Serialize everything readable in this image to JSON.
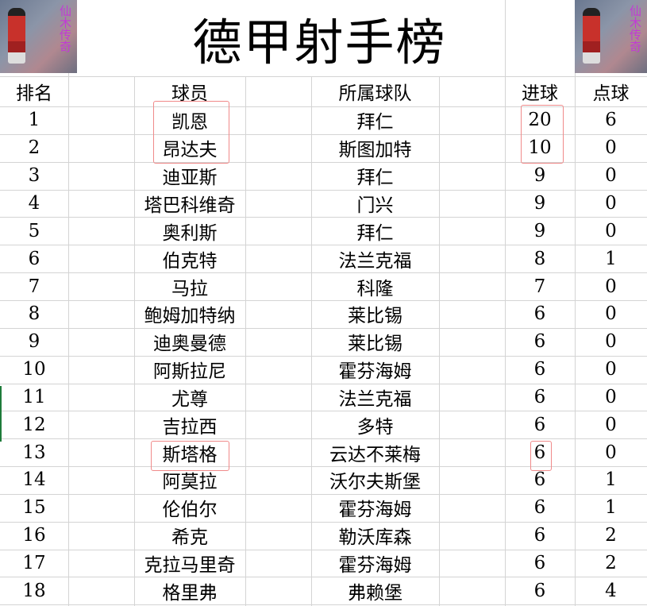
{
  "title": "德甲射手榜",
  "image_caption": "仙木传奇",
  "headers": {
    "rank": "排名",
    "player": "球员",
    "team": "所属球队",
    "goals": "进球",
    "penalties": "点球"
  },
  "rows": [
    {
      "rank": "1",
      "player": "凯恩",
      "team": "拜仁",
      "goals": "20",
      "penalties": "6"
    },
    {
      "rank": "2",
      "player": "昂达夫",
      "team": "斯图加特",
      "goals": "10",
      "penalties": "0"
    },
    {
      "rank": "3",
      "player": "迪亚斯",
      "team": "拜仁",
      "goals": "9",
      "penalties": "0"
    },
    {
      "rank": "4",
      "player": "塔巴科维奇",
      "team": "门兴",
      "goals": "9",
      "penalties": "0"
    },
    {
      "rank": "5",
      "player": "奥利斯",
      "team": "拜仁",
      "goals": "9",
      "penalties": "0"
    },
    {
      "rank": "6",
      "player": "伯克特",
      "team": "法兰克福",
      "goals": "8",
      "penalties": "1"
    },
    {
      "rank": "7",
      "player": "马拉",
      "team": "科隆",
      "goals": "7",
      "penalties": "0"
    },
    {
      "rank": "8",
      "player": "鲍姆加特纳",
      "team": "莱比锡",
      "goals": "6",
      "penalties": "0"
    },
    {
      "rank": "9",
      "player": "迪奥曼德",
      "team": "莱比锡",
      "goals": "6",
      "penalties": "0"
    },
    {
      "rank": "10",
      "player": "阿斯拉尼",
      "team": "霍芬海姆",
      "goals": "6",
      "penalties": "0"
    },
    {
      "rank": "11",
      "player": "尤尊",
      "team": "法兰克福",
      "goals": "6",
      "penalties": "0"
    },
    {
      "rank": "12",
      "player": "吉拉西",
      "team": "多特",
      "goals": "6",
      "penalties": "0"
    },
    {
      "rank": "13",
      "player": "斯塔格",
      "team": "云达不莱梅",
      "goals": "6",
      "penalties": "0"
    },
    {
      "rank": "14",
      "player": "阿莫拉",
      "team": "沃尔夫斯堡",
      "goals": "6",
      "penalties": "1"
    },
    {
      "rank": "15",
      "player": "伦伯尔",
      "team": "霍芬海姆",
      "goals": "6",
      "penalties": "1"
    },
    {
      "rank": "16",
      "player": "希克",
      "team": "勒沃库森",
      "goals": "6",
      "penalties": "2"
    },
    {
      "rank": "17",
      "player": "克拉马里奇",
      "team": "霍芬海姆",
      "goals": "6",
      "penalties": "2"
    },
    {
      "rank": "18",
      "player": "格里弗",
      "team": "弗赖堡",
      "goals": "6",
      "penalties": "4"
    }
  ],
  "colors": {
    "highlight_box": "#f08a8a",
    "gridline": "#d4d4d4",
    "selection": "#1e7b3a"
  }
}
